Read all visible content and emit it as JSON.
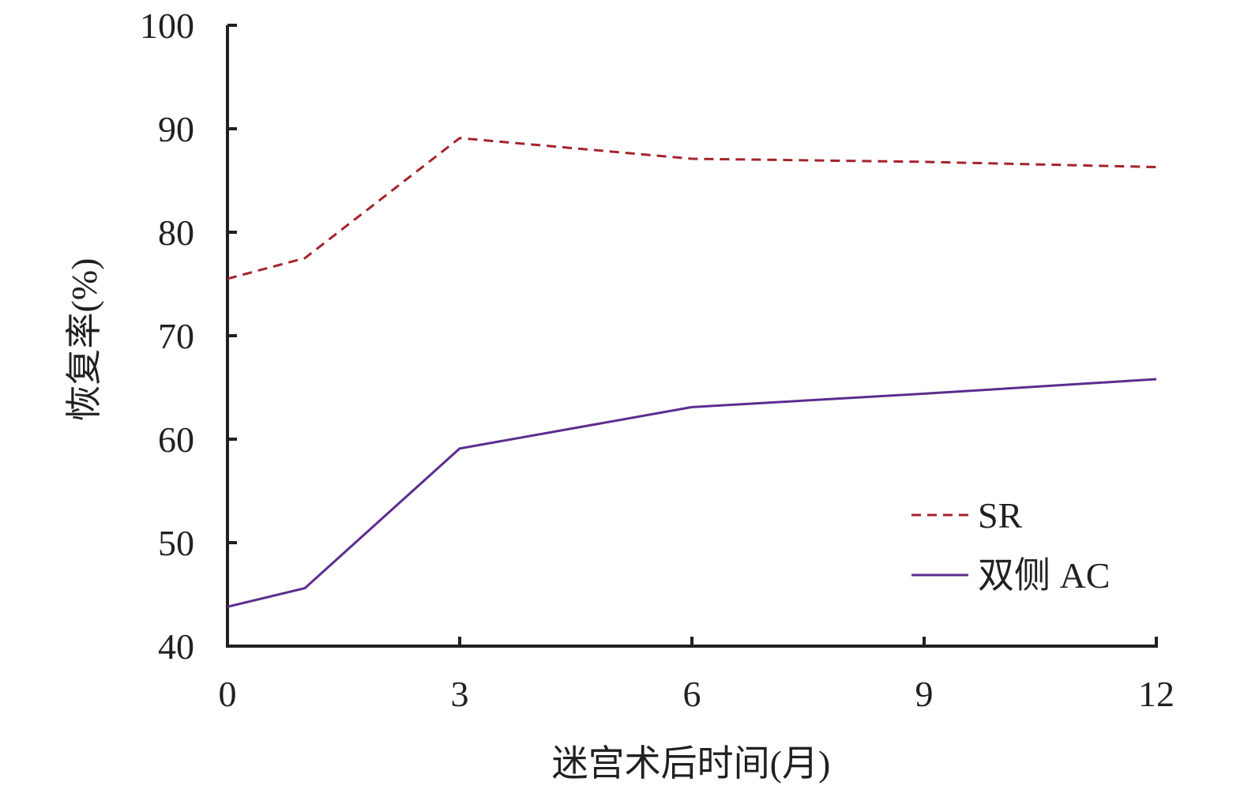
{
  "chart_data": {
    "type": "line",
    "title": "",
    "xlabel": "迷宫术后时间(月)",
    "ylabel": "恢复率(%)",
    "xlim": [
      0,
      12
    ],
    "ylim": [
      40,
      100
    ],
    "x_ticks": [
      0,
      3,
      6,
      9,
      12
    ],
    "y_ticks": [
      40,
      50,
      60,
      70,
      80,
      90,
      100
    ],
    "x": [
      0,
      1,
      3,
      6,
      9,
      12
    ],
    "series": [
      {
        "name": "SR",
        "values": [
          75.5,
          77.5,
          89.1,
          87.1,
          86.8,
          86.3
        ],
        "color": "#a4232c",
        "dash": "dashed"
      },
      {
        "name": "双侧 AC",
        "values": [
          43.8,
          45.6,
          59.1,
          63.1,
          64.4,
          65.8
        ],
        "color": "#5b2d8e",
        "dash": "solid"
      }
    ],
    "grid": false,
    "legend_position": "bottom-right",
    "axis_color": "#231f20"
  }
}
